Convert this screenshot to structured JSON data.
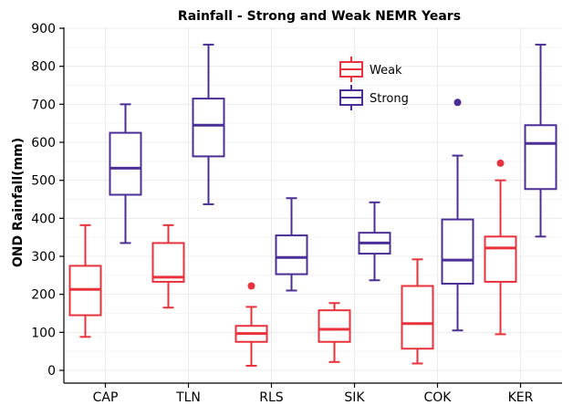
{
  "chart_data": {
    "type": "box",
    "title": "Rainfall - Strong and Weak NEMR Years",
    "xlabel": "",
    "ylabel": "OND Rainfall(mm)",
    "ylim": [
      0,
      900
    ],
    "yticks": [
      0,
      100,
      200,
      300,
      400,
      500,
      600,
      700,
      800,
      900
    ],
    "grid": true,
    "legend_position": "top-center",
    "categories": [
      "CAP",
      "TLN",
      "RLS",
      "SIK",
      "COK",
      "KER"
    ],
    "series": [
      {
        "name": "Weak",
        "color": "#e8323c",
        "boxes": [
          {
            "min": 88,
            "q1": 145,
            "median": 213,
            "q3": 275,
            "max": 382,
            "outliers": []
          },
          {
            "min": 165,
            "q1": 233,
            "median": 245,
            "q3": 335,
            "max": 382,
            "outliers": []
          },
          {
            "min": 12,
            "q1": 75,
            "median": 97,
            "q3": 117,
            "max": 167,
            "outliers": [
              222
            ]
          },
          {
            "min": 22,
            "q1": 75,
            "median": 108,
            "q3": 158,
            "max": 177,
            "outliers": []
          },
          {
            "min": 18,
            "q1": 57,
            "median": 123,
            "q3": 222,
            "max": 292,
            "outliers": []
          },
          {
            "min": 95,
            "q1": 233,
            "median": 322,
            "q3": 352,
            "max": 500,
            "outliers": [
              545
            ]
          }
        ]
      },
      {
        "name": "Strong",
        "color": "#4b2f96",
        "boxes": [
          {
            "min": 335,
            "q1": 462,
            "median": 532,
            "q3": 625,
            "max": 700,
            "outliers": []
          },
          {
            "min": 437,
            "q1": 563,
            "median": 645,
            "q3": 715,
            "max": 857,
            "outliers": []
          },
          {
            "min": 210,
            "q1": 253,
            "median": 297,
            "q3": 355,
            "max": 453,
            "outliers": []
          },
          {
            "min": 237,
            "q1": 307,
            "median": 335,
            "q3": 362,
            "max": 442,
            "outliers": []
          },
          {
            "min": 105,
            "q1": 228,
            "median": 290,
            "q3": 397,
            "max": 565,
            "outliers": [
              705
            ]
          },
          {
            "min": 352,
            "q1": 477,
            "median": 597,
            "q3": 645,
            "max": 857,
            "outliers": []
          }
        ]
      }
    ]
  }
}
